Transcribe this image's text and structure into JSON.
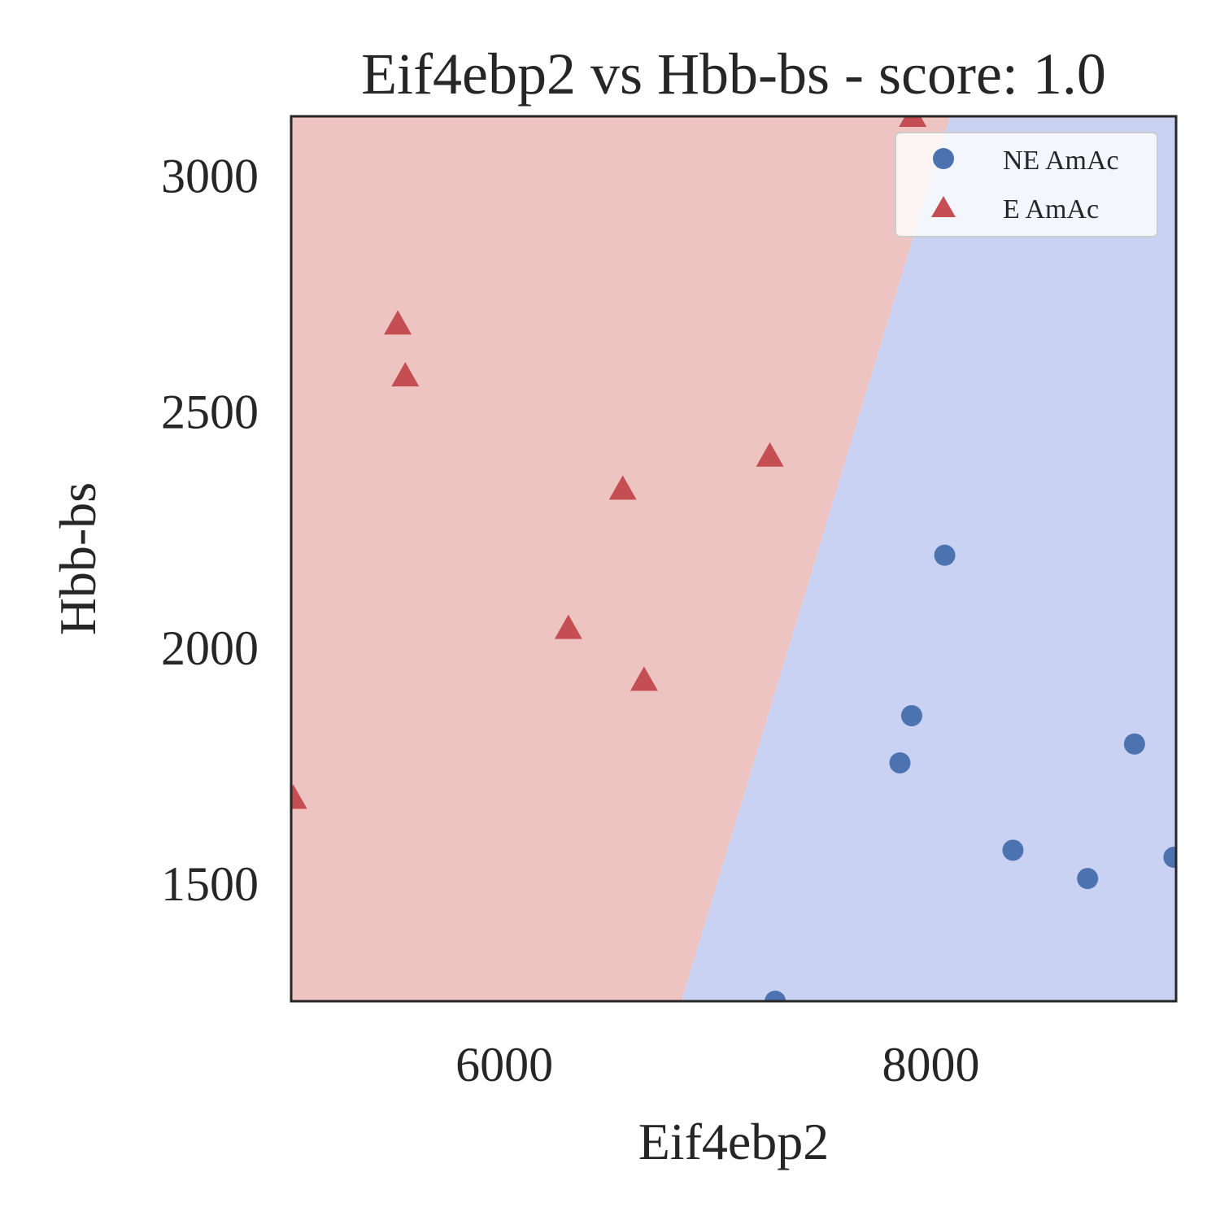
{
  "chart_data": {
    "type": "scatter",
    "title": "Eif4ebp2 vs Hbb-bs - score: 1.0",
    "xlabel": "Eif4ebp2",
    "ylabel": "Hbb-bs",
    "xlim": [
      5000,
      9150
    ],
    "ylim": [
      1250,
      3125
    ],
    "xticks": [
      6000,
      8000
    ],
    "xtick_labels": [
      "6000",
      "8000"
    ],
    "yticks": [
      1500,
      2000,
      2500,
      3000
    ],
    "ytick_labels": [
      "1500",
      "2000",
      "2500",
      "3000"
    ],
    "grid": false,
    "legend_position": "top-right",
    "decision_boundary": {
      "points": [
        [
          6830,
          1250
        ],
        [
          8090,
          3125
        ]
      ],
      "left_region": "E AmAc",
      "right_region": "NE AmAc"
    },
    "colors": {
      "ne_marker": "#4c72b0",
      "e_marker": "#c44e52",
      "ne_region": "#c9d2f2",
      "e_region": "#eec4c3",
      "axis": "#262626"
    },
    "series": [
      {
        "name": "NE AmAc",
        "marker": "circle",
        "points": [
          [
            8065,
            2195
          ],
          [
            7910,
            1855
          ],
          [
            7855,
            1755
          ],
          [
            8385,
            1570
          ],
          [
            8735,
            1510
          ],
          [
            8955,
            1795
          ],
          [
            9140,
            1555
          ],
          [
            7270,
            1250
          ]
        ]
      },
      {
        "name": "E AmAc",
        "marker": "triangle",
        "points": [
          [
            5500,
            2685
          ],
          [
            5535,
            2575
          ],
          [
            6300,
            2040
          ],
          [
            6555,
            2335
          ],
          [
            6655,
            1930
          ],
          [
            7245,
            2405
          ],
          [
            7915,
            3125
          ],
          [
            5010,
            1680
          ]
        ]
      }
    ]
  }
}
